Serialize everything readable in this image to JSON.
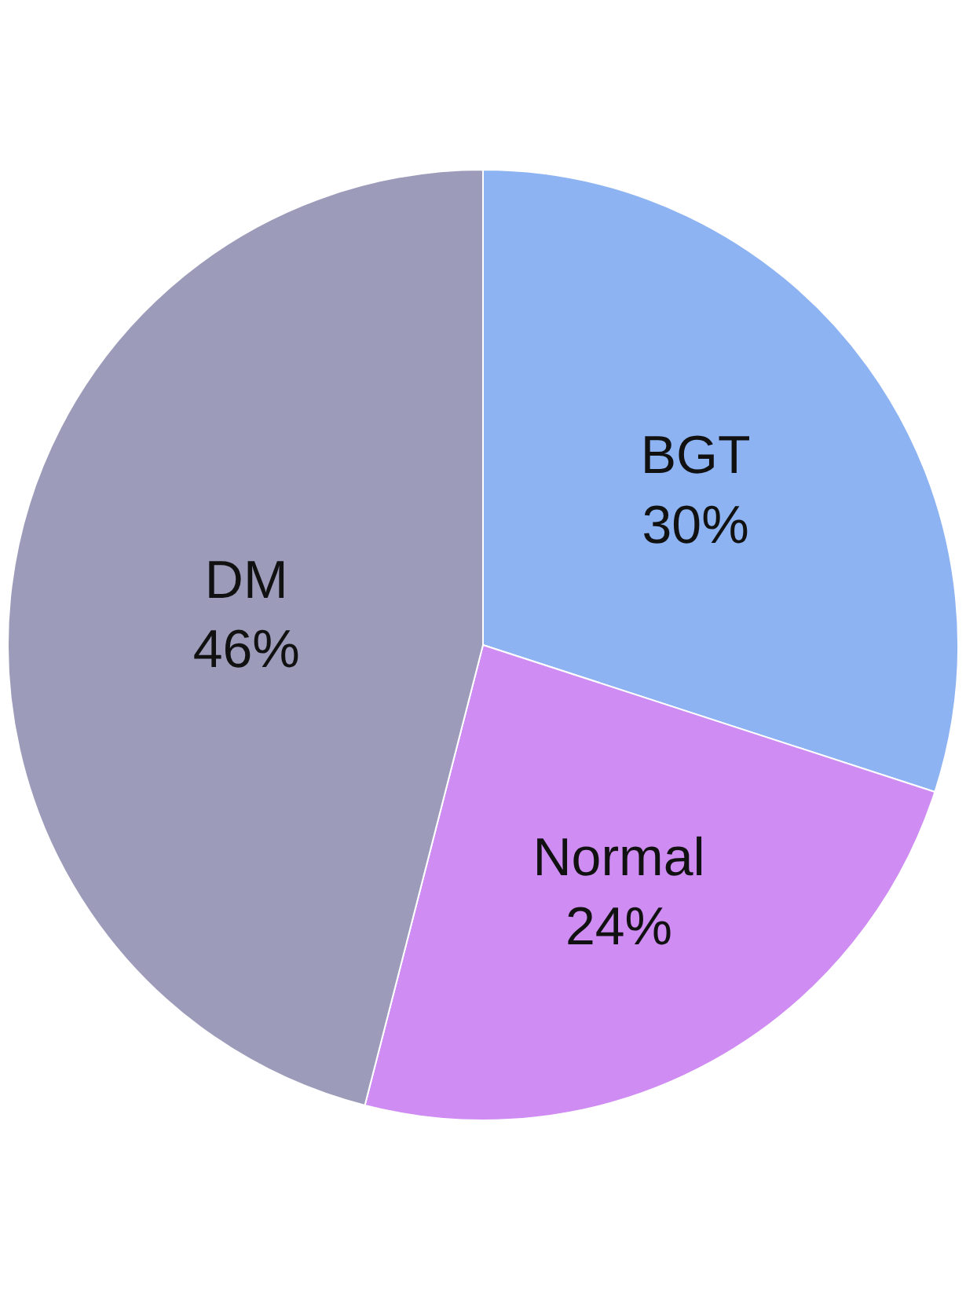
{
  "chart_data": {
    "type": "pie",
    "categories": [
      "BGT",
      "Normal",
      "DM"
    ],
    "values": [
      30,
      24,
      46
    ],
    "value_labels": [
      "30%",
      "24%",
      "46%"
    ],
    "colors": [
      "#8db3f2",
      "#cf8cf2",
      "#9c9cba"
    ],
    "legend": false
  }
}
